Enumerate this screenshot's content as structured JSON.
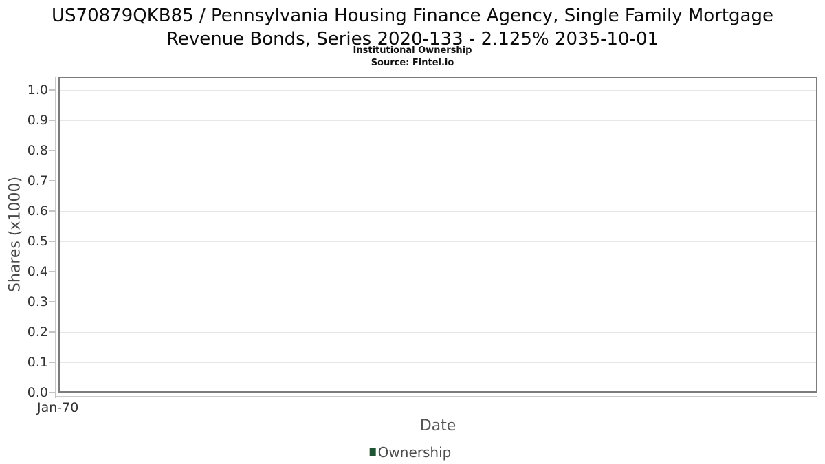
{
  "header": {
    "title_line1": "US70879QKB85 / Pennsylvania Housing Finance Agency, Single Family Mortgage",
    "title_line2": "Revenue Bonds, Series 2020-133 - 2.125% 2035-10-01",
    "subtitle": "Institutional Ownership",
    "source": "Source: Fintel.io"
  },
  "chart_data": {
    "type": "line",
    "title": "US70879QKB85 / Pennsylvania Housing Finance Agency, Single Family Mortgage Revenue Bonds, Series 2020-133 - 2.125% 2035-10-01",
    "subtitle": "Institutional Ownership",
    "source": "Source: Fintel.io",
    "xlabel": "Date",
    "ylabel": "Shares (x1000)",
    "x_ticks": [
      "Jan-70"
    ],
    "y_ticks": [
      "1.0",
      "0.9",
      "0.8",
      "0.7",
      "0.6",
      "0.5",
      "0.4",
      "0.3",
      "0.2",
      "0.1",
      "0.0"
    ],
    "ylim": [
      0.0,
      1.04
    ],
    "grid": true,
    "legend_position": "bottom",
    "series": [
      {
        "name": "Ownership",
        "color": "#1e5631",
        "x": [],
        "values": []
      }
    ]
  },
  "legend": {
    "items": [
      {
        "label": "Ownership",
        "color": "#1e5631"
      }
    ]
  },
  "colors": {
    "plot_border": "#7c7c7c",
    "gridline": "#e6e6e6",
    "axis_line": "#c9c9c9",
    "tick_label": "#333333",
    "axis_title": "#555555",
    "title_text": "#0b0b0b"
  }
}
